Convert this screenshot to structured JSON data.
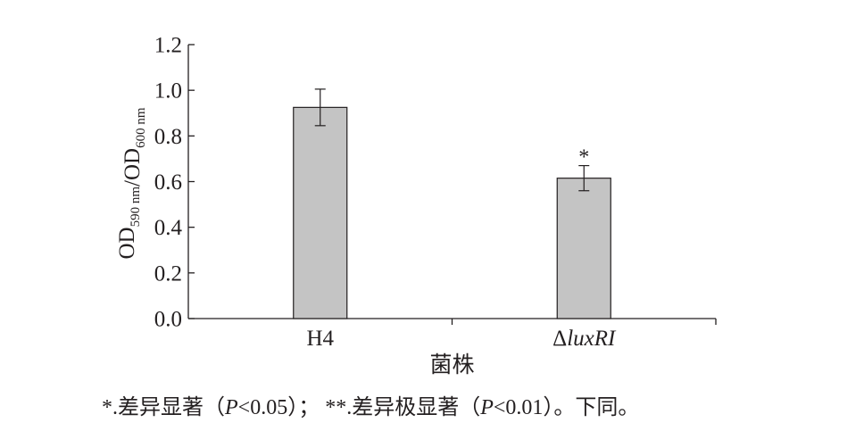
{
  "chart_data": {
    "type": "bar",
    "categories": [
      "H4",
      "ΔluxRI"
    ],
    "category_parts": [
      {
        "prefix": "H4",
        "italic": ""
      },
      {
        "prefix": "Δ",
        "italic": "luxRI"
      }
    ],
    "values": [
      0.925,
      0.615
    ],
    "error": [
      0.08,
      0.055
    ],
    "significance": [
      "",
      "*"
    ],
    "xlabel": "菌株",
    "ylabel": {
      "parts": [
        {
          "text": "OD",
          "sub": "590 nm"
        },
        {
          "text": "/OD",
          "sub": "600 nm"
        }
      ]
    },
    "ylim": [
      0,
      1.2
    ],
    "yticks": [
      "0.0",
      "0.2",
      "0.4",
      "0.6",
      "0.8",
      "1.0",
      "1.2"
    ],
    "bar_color": "#c4c4c4",
    "bar_edge_color": "#231f20",
    "grid": false,
    "legend": "none"
  },
  "footnote": {
    "part1": "*.差异显著（",
    "p1": "P",
    "part2": "<0.05）；",
    "part3": "**.差异极显著（",
    "p2": "P",
    "part4": "<0.01）。下同。"
  }
}
